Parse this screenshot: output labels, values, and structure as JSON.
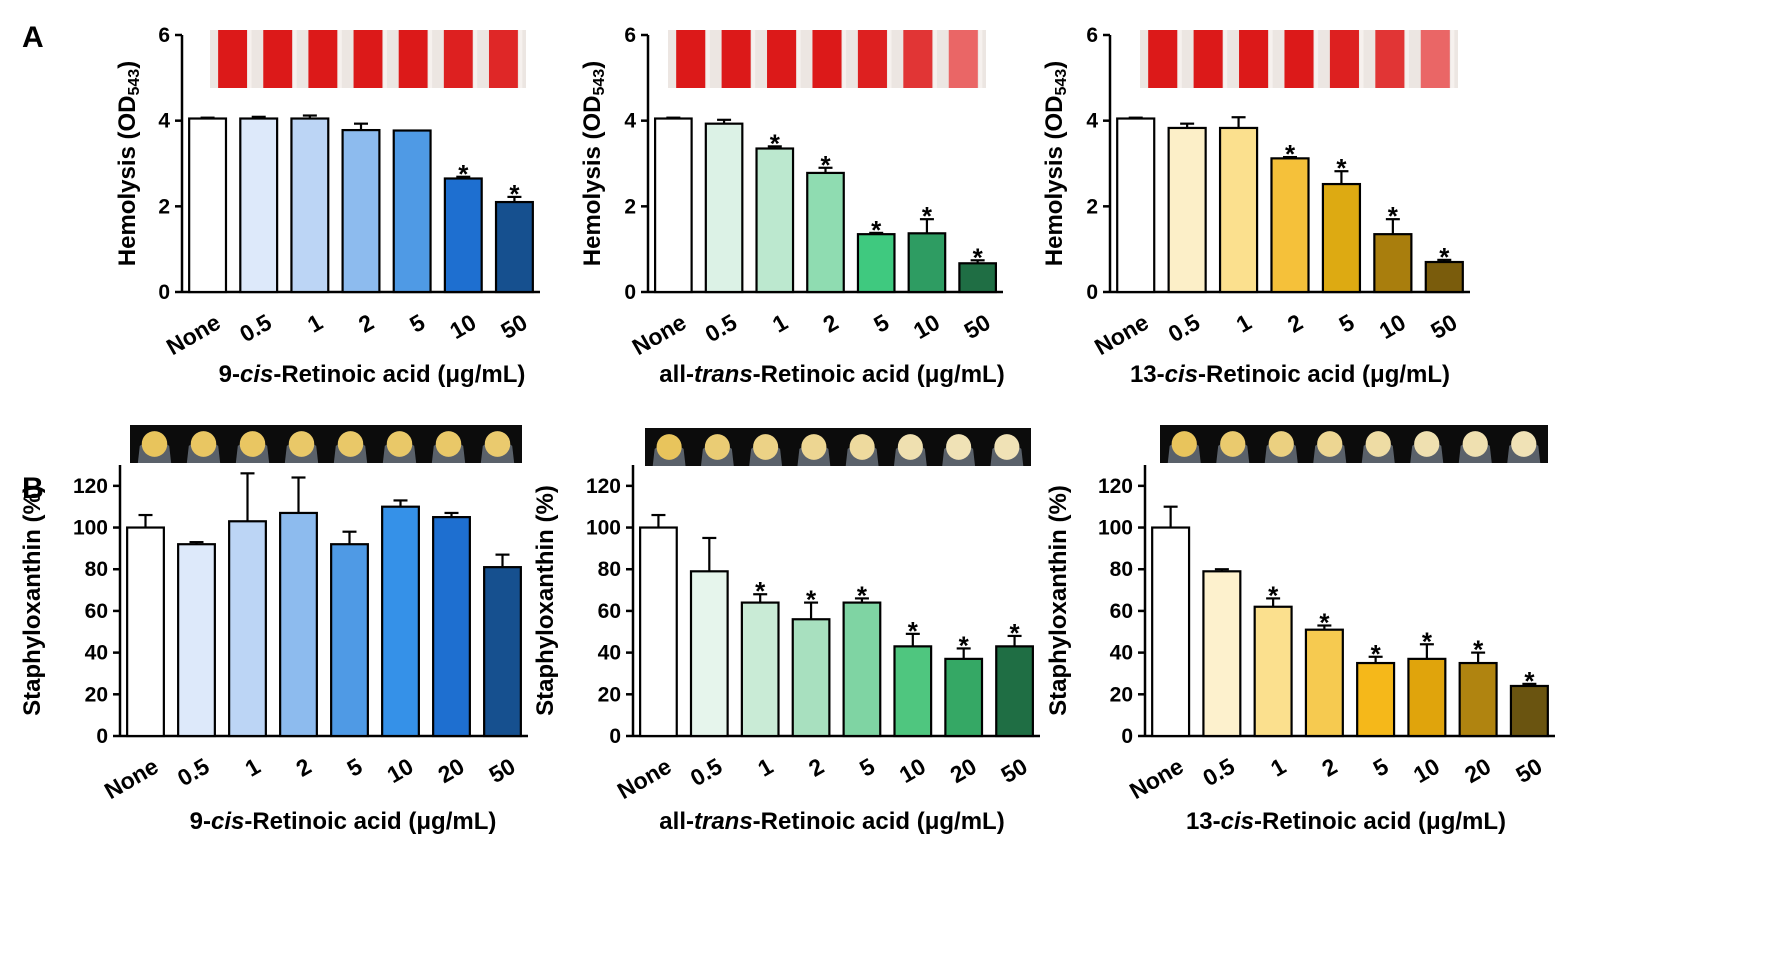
{
  "panel_labels": [
    "A",
    "B"
  ],
  "colors": {
    "blue": [
      "#ffffff",
      "#dde9fa",
      "#bcd5f5",
      "#8dbbee",
      "#4f9ae5",
      "#1e6fd0",
      "#16508f"
    ],
    "green": [
      "#ffffff",
      "#dcf2e6",
      "#bce8cf",
      "#8fdcb1",
      "#3fc97f",
      "#2e9c62",
      "#1f6e44"
    ],
    "gold": [
      "#ffffff",
      "#fcefc8",
      "#fbe08e",
      "#f5c13a",
      "#ddaa12",
      "#a97e0d",
      "#7a5c0c"
    ],
    "blueB": [
      "#ffffff",
      "#dde9fa",
      "#bcd5f5",
      "#8dbbee",
      "#4f9ae5",
      "#3591e8",
      "#1e6fd0",
      "#16508f"
    ],
    "greenB": [
      "#ffffff",
      "#e6f5ec",
      "#c9ebd6",
      "#a8e0bf",
      "#7fd4a3",
      "#4fc67f",
      "#35a865",
      "#1f6e44"
    ],
    "goldB": [
      "#ffffff",
      "#fdf1cd",
      "#fbe08e",
      "#f6ca50",
      "#f5b81a",
      "#e0a40c",
      "#b08410",
      "#6a5410"
    ]
  },
  "chart_data": [
    {
      "id": "A1",
      "type": "bar",
      "panel": "A",
      "ylabel": "Hemolysis (OD543)",
      "ylabel_main": "Hemolysis (OD",
      "ylabel_sub": "543",
      "ylabel_end": ")",
      "xlabel_parts": [
        "9-",
        "cis",
        "-Retinoic acid (μg/mL)"
      ],
      "categories": [
        "None",
        "0.5",
        "1",
        "2",
        "5",
        "10",
        "50"
      ],
      "values": [
        4.05,
        4.05,
        4.05,
        3.78,
        3.77,
        2.65,
        2.1
      ],
      "errors": [
        0.02,
        0.04,
        0.07,
        0.15,
        0.0,
        0.04,
        0.12
      ],
      "significant": [
        false,
        false,
        false,
        false,
        false,
        true,
        true
      ],
      "ylim": [
        0,
        6
      ],
      "yticks": [
        0,
        2,
        4,
        6
      ],
      "inset": "hemolysis-tubes",
      "tube_intensity": [
        1,
        1,
        1,
        1,
        1,
        0.95,
        0.9
      ],
      "color_key": "blue"
    },
    {
      "id": "A2",
      "type": "bar",
      "panel": "A",
      "ylabel": "Hemolysis (OD543)",
      "ylabel_main": "Hemolysis (OD",
      "ylabel_sub": "543",
      "ylabel_end": ")",
      "xlabel_parts": [
        "all-",
        "trans",
        "-Retinoic acid (μg/mL)"
      ],
      "categories": [
        "None",
        "0.5",
        "1",
        "2",
        "5",
        "10",
        "50"
      ],
      "values": [
        4.05,
        3.93,
        3.35,
        2.78,
        1.35,
        1.37,
        0.67
      ],
      "errors": [
        0.02,
        0.09,
        0.05,
        0.12,
        0.03,
        0.33,
        0.07
      ],
      "significant": [
        false,
        false,
        true,
        true,
        true,
        true,
        true
      ],
      "ylim": [
        0,
        6
      ],
      "yticks": [
        0,
        2,
        4,
        6
      ],
      "inset": "hemolysis-tubes",
      "tube_intensity": [
        1,
        1,
        1,
        1,
        0.95,
        0.8,
        0.45
      ],
      "color_key": "green"
    },
    {
      "id": "A3",
      "type": "bar",
      "panel": "A",
      "ylabel": "Hemolysis (OD543)",
      "ylabel_main": "Hemolysis (OD",
      "ylabel_sub": "543",
      "ylabel_end": ")",
      "xlabel_parts": [
        "13-",
        "cis",
        "-Retinoic acid (μg/mL)"
      ],
      "categories": [
        "None",
        "0.5",
        "1",
        "2",
        "5",
        "10",
        "50"
      ],
      "values": [
        4.05,
        3.83,
        3.83,
        3.12,
        2.52,
        1.35,
        0.7
      ],
      "errors": [
        0.02,
        0.1,
        0.25,
        0.03,
        0.3,
        0.35,
        0.05
      ],
      "significant": [
        false,
        false,
        false,
        true,
        true,
        true,
        true
      ],
      "ylim": [
        0,
        6
      ],
      "yticks": [
        0,
        2,
        4,
        6
      ],
      "inset": "hemolysis-tubes",
      "tube_intensity": [
        1,
        1,
        1,
        1,
        0.95,
        0.8,
        0.45
      ],
      "color_key": "gold"
    },
    {
      "id": "B1",
      "type": "bar",
      "panel": "B",
      "ylabel": "Staphyloxanthin (%)",
      "xlabel_parts": [
        "9-",
        "cis",
        "-Retinoic acid (μg/mL)"
      ],
      "categories": [
        "None",
        "0.5",
        "1",
        "2",
        "5",
        "10",
        "20",
        "50"
      ],
      "values": [
        100,
        92,
        103,
        107,
        92,
        110,
        105,
        81
      ],
      "errors": [
        6,
        1,
        23,
        17,
        6,
        3,
        2,
        6
      ],
      "significant": [
        false,
        false,
        false,
        false,
        false,
        false,
        false,
        false
      ],
      "ylim": [
        0,
        130
      ],
      "yticks": [
        0,
        20,
        40,
        60,
        80,
        100,
        120
      ],
      "inset": "pellets",
      "pellet_yellowness": [
        1,
        0.95,
        0.95,
        0.9,
        0.9,
        0.9,
        0.9,
        0.85
      ],
      "color_key": "blueB"
    },
    {
      "id": "B2",
      "type": "bar",
      "panel": "B",
      "ylabel": "Staphyloxanthin (%)",
      "xlabel_parts": [
        "all-",
        "trans",
        "-Retinoic acid (μg/mL)"
      ],
      "categories": [
        "None",
        "0.5",
        "1",
        "2",
        "5",
        "10",
        "20",
        "50"
      ],
      "values": [
        100,
        79,
        64,
        56,
        64,
        43,
        37,
        43
      ],
      "errors": [
        6,
        16,
        4,
        8,
        2,
        6,
        5,
        5
      ],
      "significant": [
        false,
        false,
        true,
        true,
        true,
        true,
        true,
        true
      ],
      "ylim": [
        0,
        130
      ],
      "yticks": [
        0,
        20,
        40,
        60,
        80,
        100,
        120
      ],
      "inset": "pellets",
      "pellet_yellowness": [
        1,
        0.8,
        0.65,
        0.55,
        0.45,
        0.3,
        0.25,
        0.25
      ],
      "color_key": "greenB"
    },
    {
      "id": "B3",
      "type": "bar",
      "panel": "B",
      "ylabel": "Staphyloxanthin (%)",
      "xlabel_parts": [
        "13-",
        "cis",
        "-Retinoic acid (μg/mL)"
      ],
      "categories": [
        "None",
        "0.5",
        "1",
        "2",
        "5",
        "10",
        "20",
        "50"
      ],
      "values": [
        100,
        79,
        62,
        51,
        35,
        37,
        35,
        24
      ],
      "errors": [
        10,
        1,
        4,
        2,
        3,
        7,
        5,
        1
      ],
      "significant": [
        false,
        false,
        true,
        true,
        true,
        true,
        true,
        true
      ],
      "ylim": [
        0,
        130
      ],
      "yticks": [
        0,
        20,
        40,
        60,
        80,
        100,
        120
      ],
      "inset": "pellets",
      "pellet_yellowness": [
        1,
        0.85,
        0.7,
        0.55,
        0.4,
        0.3,
        0.3,
        0.25
      ],
      "color_key": "goldB"
    }
  ]
}
